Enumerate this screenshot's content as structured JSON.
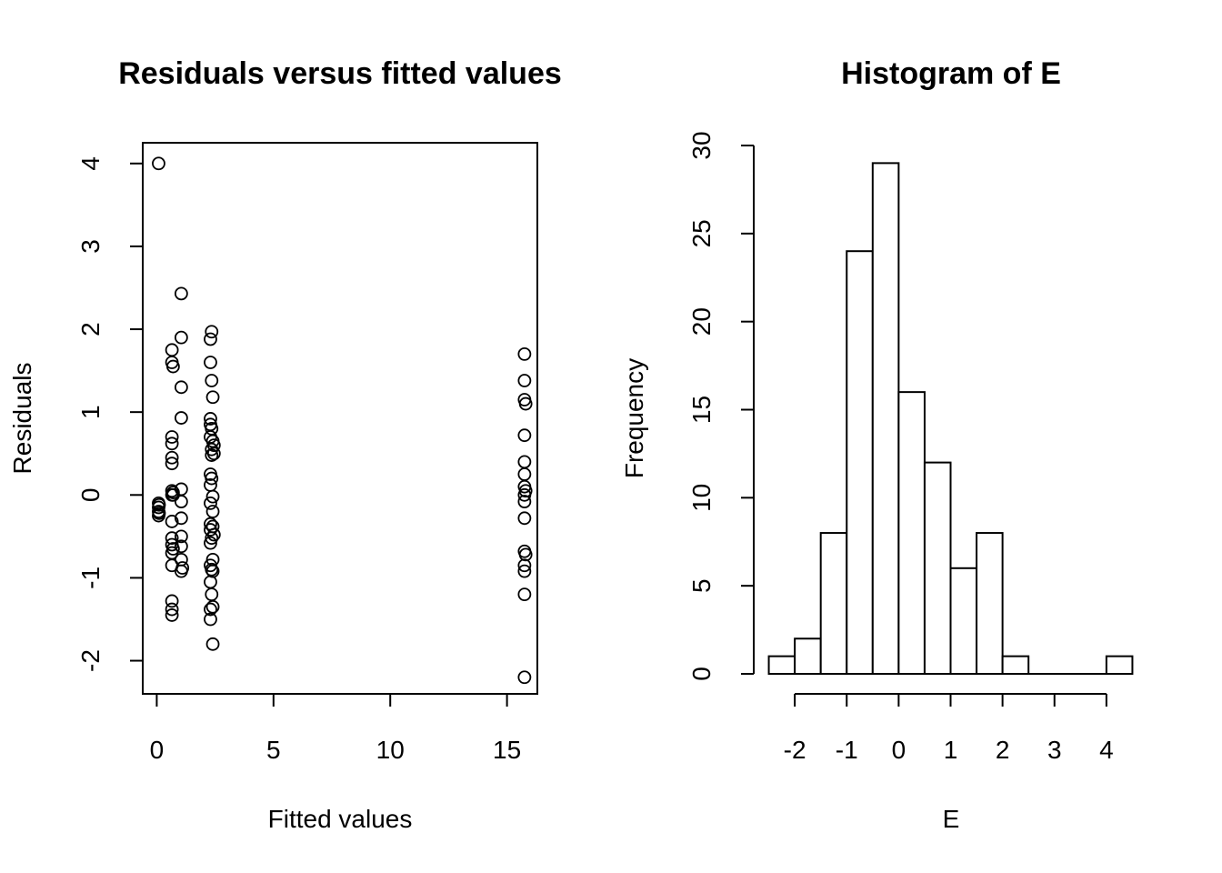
{
  "chart_data": [
    {
      "type": "scatter",
      "title": "Residuals versus fitted values",
      "xlabel": "Fitted values",
      "ylabel": "Residuals",
      "xlim": [
        -0.6,
        16.3
      ],
      "ylim": [
        -2.4,
        4.25
      ],
      "xticks": [
        0,
        5,
        10,
        15
      ],
      "yticks": [
        -2,
        -1,
        0,
        1,
        2,
        3,
        4
      ],
      "grid": false,
      "points": [
        {
          "x": 0.08,
          "y": 4.0
        },
        {
          "x": 0.08,
          "y": -0.1
        },
        {
          "x": 0.08,
          "y": -0.15
        },
        {
          "x": 0.08,
          "y": -0.2
        },
        {
          "x": 0.08,
          "y": -0.25
        },
        {
          "x": 0.1,
          "y": -0.12
        },
        {
          "x": 0.1,
          "y": -0.22
        },
        {
          "x": 0.65,
          "y": 1.75
        },
        {
          "x": 0.65,
          "y": 1.6
        },
        {
          "x": 0.7,
          "y": 1.55
        },
        {
          "x": 0.65,
          "y": 0.7
        },
        {
          "x": 0.65,
          "y": 0.62
        },
        {
          "x": 0.65,
          "y": 0.45
        },
        {
          "x": 0.65,
          "y": 0.38
        },
        {
          "x": 0.65,
          "y": 0.05
        },
        {
          "x": 0.7,
          "y": 0.03
        },
        {
          "x": 0.65,
          "y": 0.0
        },
        {
          "x": 0.7,
          "y": 0.0
        },
        {
          "x": 0.65,
          "y": -0.32
        },
        {
          "x": 0.65,
          "y": -0.52
        },
        {
          "x": 0.65,
          "y": -0.6
        },
        {
          "x": 0.7,
          "y": -0.65
        },
        {
          "x": 0.65,
          "y": -0.7
        },
        {
          "x": 0.65,
          "y": -0.85
        },
        {
          "x": 0.65,
          "y": -1.28
        },
        {
          "x": 0.65,
          "y": -1.38
        },
        {
          "x": 0.65,
          "y": -1.45
        },
        {
          "x": 1.05,
          "y": 2.43
        },
        {
          "x": 1.05,
          "y": 1.9
        },
        {
          "x": 1.05,
          "y": 1.3
        },
        {
          "x": 1.05,
          "y": 0.93
        },
        {
          "x": 1.05,
          "y": 0.07
        },
        {
          "x": 1.05,
          "y": -0.08
        },
        {
          "x": 1.05,
          "y": -0.28
        },
        {
          "x": 1.05,
          "y": -0.5
        },
        {
          "x": 1.05,
          "y": -0.62
        },
        {
          "x": 1.05,
          "y": -0.78
        },
        {
          "x": 1.05,
          "y": -0.92
        },
        {
          "x": 1.1,
          "y": -0.88
        },
        {
          "x": 2.35,
          "y": 1.97
        },
        {
          "x": 2.3,
          "y": 1.88
        },
        {
          "x": 2.3,
          "y": 1.6
        },
        {
          "x": 2.35,
          "y": 1.38
        },
        {
          "x": 2.4,
          "y": 1.18
        },
        {
          "x": 2.3,
          "y": 0.92
        },
        {
          "x": 2.3,
          "y": 0.85
        },
        {
          "x": 2.35,
          "y": 0.8
        },
        {
          "x": 2.3,
          "y": 0.7
        },
        {
          "x": 2.4,
          "y": 0.65
        },
        {
          "x": 2.45,
          "y": 0.6
        },
        {
          "x": 2.35,
          "y": 0.55
        },
        {
          "x": 2.45,
          "y": 0.5
        },
        {
          "x": 2.35,
          "y": 0.48
        },
        {
          "x": 2.3,
          "y": 0.25
        },
        {
          "x": 2.35,
          "y": 0.2
        },
        {
          "x": 2.3,
          "y": 0.12
        },
        {
          "x": 2.4,
          "y": -0.02
        },
        {
          "x": 2.3,
          "y": -0.1
        },
        {
          "x": 2.4,
          "y": -0.2
        },
        {
          "x": 2.3,
          "y": -0.35
        },
        {
          "x": 2.4,
          "y": -0.38
        },
        {
          "x": 2.3,
          "y": -0.42
        },
        {
          "x": 2.45,
          "y": -0.48
        },
        {
          "x": 2.35,
          "y": -0.52
        },
        {
          "x": 2.3,
          "y": -0.58
        },
        {
          "x": 2.4,
          "y": -0.78
        },
        {
          "x": 2.3,
          "y": -0.85
        },
        {
          "x": 2.35,
          "y": -0.9
        },
        {
          "x": 2.4,
          "y": -0.92
        },
        {
          "x": 2.3,
          "y": -1.05
        },
        {
          "x": 2.35,
          "y": -1.2
        },
        {
          "x": 2.4,
          "y": -1.35
        },
        {
          "x": 2.3,
          "y": -1.38
        },
        {
          "x": 2.3,
          "y": -1.5
        },
        {
          "x": 2.4,
          "y": -1.8
        },
        {
          "x": 15.75,
          "y": 1.7
        },
        {
          "x": 15.75,
          "y": 1.38
        },
        {
          "x": 15.75,
          "y": 1.15
        },
        {
          "x": 15.8,
          "y": 1.1
        },
        {
          "x": 15.75,
          "y": 0.72
        },
        {
          "x": 15.75,
          "y": 0.4
        },
        {
          "x": 15.75,
          "y": 0.25
        },
        {
          "x": 15.75,
          "y": 0.1
        },
        {
          "x": 15.8,
          "y": 0.05
        },
        {
          "x": 15.75,
          "y": 0.0
        },
        {
          "x": 15.75,
          "y": -0.08
        },
        {
          "x": 15.75,
          "y": -0.28
        },
        {
          "x": 15.75,
          "y": -0.68
        },
        {
          "x": 15.8,
          "y": -0.72
        },
        {
          "x": 15.75,
          "y": -0.85
        },
        {
          "x": 15.75,
          "y": -0.92
        },
        {
          "x": 15.75,
          "y": -1.2
        },
        {
          "x": 15.75,
          "y": -2.2
        }
      ]
    },
    {
      "type": "bar",
      "title": "Histogram of E",
      "xlabel": "E",
      "ylabel": "Frequency",
      "bins": [
        {
          "from": -2.5,
          "to": -2.0,
          "count": 1
        },
        {
          "from": -2.0,
          "to": -1.5,
          "count": 2
        },
        {
          "from": -1.5,
          "to": -1.0,
          "count": 8
        },
        {
          "from": -1.0,
          "to": -0.5,
          "count": 24
        },
        {
          "from": -0.5,
          "to": 0.0,
          "count": 29
        },
        {
          "from": 0.0,
          "to": 0.5,
          "count": 16
        },
        {
          "from": 0.5,
          "to": 1.0,
          "count": 12
        },
        {
          "from": 1.0,
          "to": 1.5,
          "count": 6
        },
        {
          "from": 1.5,
          "to": 2.0,
          "count": 8
        },
        {
          "from": 2.0,
          "to": 2.5,
          "count": 1
        },
        {
          "from": 2.5,
          "to": 3.0,
          "count": 0
        },
        {
          "from": 3.0,
          "to": 3.5,
          "count": 0
        },
        {
          "from": 3.5,
          "to": 4.0,
          "count": 0
        },
        {
          "from": 4.0,
          "to": 4.5,
          "count": 1
        }
      ],
      "xlim": [
        -2.5,
        4.5
      ],
      "ylim": [
        0,
        30
      ],
      "xticks": [
        -2,
        -1,
        0,
        1,
        2,
        3,
        4
      ],
      "yticks": [
        0,
        5,
        10,
        15,
        20,
        25,
        30
      ],
      "grid": false
    }
  ]
}
